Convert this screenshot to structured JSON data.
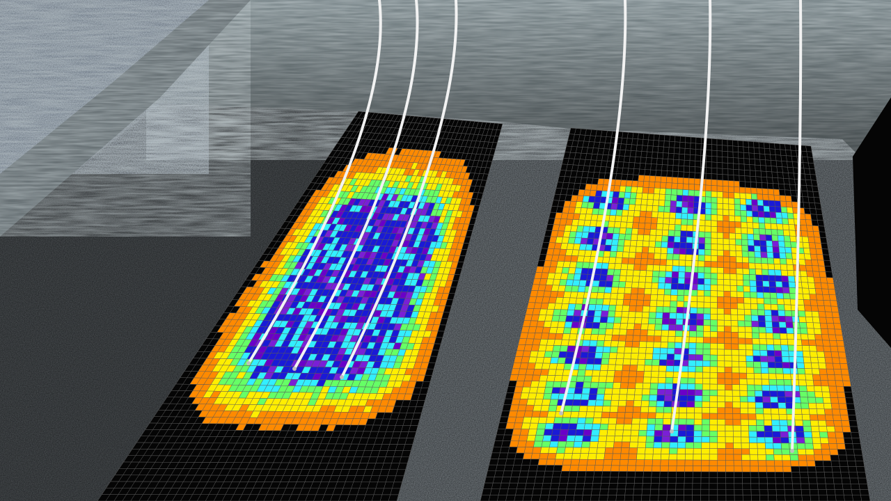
{
  "scene": {
    "description_tag": "seam-render",
    "palette": {
      "black": "#050505",
      "orange": "#ff8a00",
      "yellow": "#ffee00",
      "green": "#66ff66",
      "cyan": "#33eeff",
      "blue": "#1a1ad6",
      "purple": "#7a1fd6",
      "magenta": "#6a00c8",
      "grid": "#5a5a5a",
      "wall": "#7e8c92",
      "rock_dark": "#2b2f33",
      "rock_light": "#4e5559",
      "borehole": "#f2f2f2"
    },
    "panels": [
      {
        "name": "panel-left",
        "boreholes": 3,
        "pattern": "continuous"
      },
      {
        "name": "panel-right",
        "boreholes": 3,
        "pattern": "periodic"
      }
    ]
  }
}
